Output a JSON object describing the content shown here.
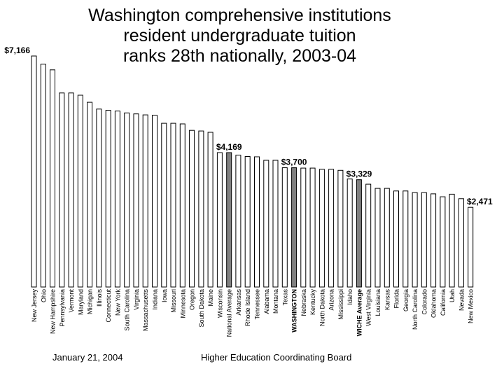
{
  "title_lines": [
    "Washington comprehensive institutions",
    "resident undergraduate tuition",
    "ranks 28th nationally, 2003-04"
  ],
  "footer": {
    "date": "January 21, 2004",
    "org": "Higher Education Coordinating Board"
  },
  "colors": {
    "bar": "#ffffff",
    "highlight": "#808080",
    "stroke": "#000000"
  },
  "chart_data": {
    "type": "bar",
    "title": "Washington comprehensive institutions resident undergraduate tuition ranks 28th nationally, 2003-04",
    "xlabel": "",
    "ylabel": "",
    "ylim": [
      0,
      7250
    ],
    "grid": false,
    "categories": [
      "New Jersey",
      "Ohio",
      "New Hampshire",
      "Pennsylvania",
      "Vermont",
      "Maryland",
      "Michigan",
      "Illinois",
      "Connecticut",
      "New York",
      "South Carolina",
      "Virginia",
      "Massachusetts",
      "Indiana",
      "Iowa",
      "Missouri",
      "Minnesota",
      "Oregon",
      "South Dakota",
      "Maine",
      "Wisconsin",
      "National Average",
      "Arkansas",
      "Rhode Island",
      "Tennessee",
      "Alabama",
      "Montana",
      "Texas",
      "WASHINGTON",
      "Nebraska",
      "Kentucky",
      "North Dakota",
      "Arizona",
      "Mississippi",
      "Idaho",
      "WICHE Average",
      "West Virginia",
      "Louisiana",
      "Kansas",
      "Florida",
      "Georgia",
      "North Carolina",
      "Colorado",
      "Oklahoma",
      "California",
      "Utah",
      "Nevada",
      "New Mexico"
    ],
    "values": [
      7166,
      6915,
      6735,
      6020,
      6020,
      5950,
      5730,
      5520,
      5480,
      5460,
      5400,
      5370,
      5340,
      5330,
      5080,
      5080,
      5060,
      4860,
      4840,
      4800,
      4169,
      4169,
      4090,
      4050,
      4040,
      3930,
      3930,
      3700,
      3700,
      3690,
      3690,
      3650,
      3650,
      3620,
      3350,
      3329,
      3190,
      3060,
      3060,
      2980,
      2980,
      2930,
      2930,
      2890,
      2800,
      2880,
      2740,
      2471
    ],
    "highlighted": [
      "National Average",
      "WASHINGTON",
      "WICHE Average"
    ],
    "bold_categories": [
      "WASHINGTON",
      "WICHE Average"
    ],
    "annotations": [
      {
        "category": "New Jersey",
        "label": "$7,166"
      },
      {
        "category": "National Average",
        "label": "$4,169"
      },
      {
        "category": "WASHINGTON",
        "label": "$3,700"
      },
      {
        "category": "WICHE Average",
        "label": "$3,329"
      },
      {
        "category": "New Mexico",
        "label": "$2,471"
      }
    ]
  }
}
